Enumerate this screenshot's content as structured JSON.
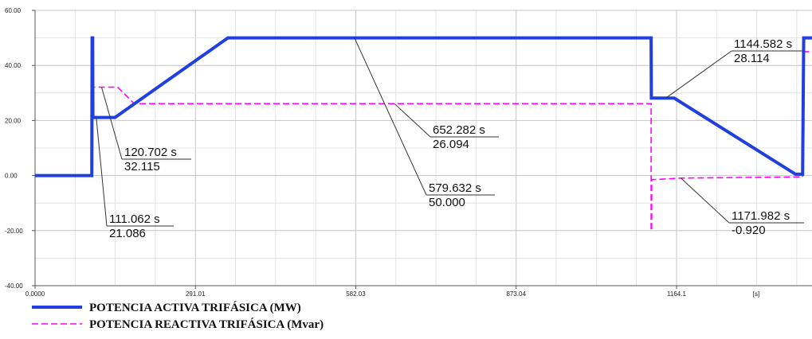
{
  "chart_data": {
    "type": "line",
    "title": "",
    "xlabel": "",
    "ylabel": "",
    "x_unit_label": "[s]",
    "xlim": [
      0,
      1410
    ],
    "ylim": [
      -40,
      60
    ],
    "grid": true,
    "legend_placement": "bottom-left",
    "x_ticks": [
      {
        "value": 0,
        "label": "0.0000"
      },
      {
        "value": 291.01,
        "label": "291.01"
      },
      {
        "value": 582.03,
        "label": "582.03"
      },
      {
        "value": 873.04,
        "label": "873.04"
      },
      {
        "value": 1164.1,
        "label": "1164.1"
      }
    ],
    "y_ticks": [
      {
        "value": 60,
        "label": "60.00"
      },
      {
        "value": 40,
        "label": "40.00"
      },
      {
        "value": 20,
        "label": "20.00"
      },
      {
        "value": 0,
        "label": "0.00"
      },
      {
        "value": -20,
        "label": "-20.00"
      },
      {
        "value": -40,
        "label": "-40.00"
      }
    ],
    "series": [
      {
        "name": "POTENCIA ACTIVA TRIFÁSICA (MW)",
        "color": "#1f3fe0",
        "style": "solid",
        "points": [
          [
            0,
            0
          ],
          [
            103,
            0
          ],
          [
            103.5,
            50
          ],
          [
            104.5,
            50
          ],
          [
            105,
            21.086
          ],
          [
            111.062,
            21.086
          ],
          [
            145,
            21.086
          ],
          [
            350,
            50
          ],
          [
            1118,
            50
          ],
          [
            1118.5,
            28.114
          ],
          [
            1160,
            28.114
          ],
          [
            1380,
            0.5
          ],
          [
            1393,
            0.5
          ],
          [
            1395,
            50
          ],
          [
            1410,
            50
          ]
        ]
      },
      {
        "name": "POTENCIA REACTIVA TRIFÁSICA (Mvar)",
        "color": "#ff00ff",
        "style": "dashed",
        "points": [
          [
            0,
            0
          ],
          [
            103,
            0
          ],
          [
            103.5,
            48
          ],
          [
            104.5,
            48
          ],
          [
            105,
            32.115
          ],
          [
            120.702,
            32.115
          ],
          [
            150,
            32.115
          ],
          [
            180,
            26.094
          ],
          [
            1118,
            26.094
          ],
          [
            1118,
            -20
          ],
          [
            1119,
            -20
          ],
          [
            1119,
            -1.5
          ],
          [
            1171.982,
            -0.92
          ],
          [
            1393,
            -0.5
          ],
          [
            1395,
            45
          ],
          [
            1410,
            45
          ]
        ]
      }
    ],
    "annotations": [
      {
        "x": 120.702,
        "y": 32.115,
        "time_label": "120.702 s",
        "value_label": "32.115"
      },
      {
        "x": 111.062,
        "y": 21.086,
        "time_label": "111.062 s",
        "value_label": "21.086"
      },
      {
        "x": 652.282,
        "y": 26.094,
        "time_label": "652.282 s",
        "value_label": "26.094"
      },
      {
        "x": 579.632,
        "y": 50.0,
        "time_label": "579.632 s",
        "value_label": "50.000"
      },
      {
        "x": 1144.582,
        "y": 28.114,
        "time_label": "1144.582 s",
        "value_label": "28.114"
      },
      {
        "x": 1171.982,
        "y": -0.92,
        "time_label": "1171.982 s",
        "value_label": "-0.920"
      }
    ]
  }
}
